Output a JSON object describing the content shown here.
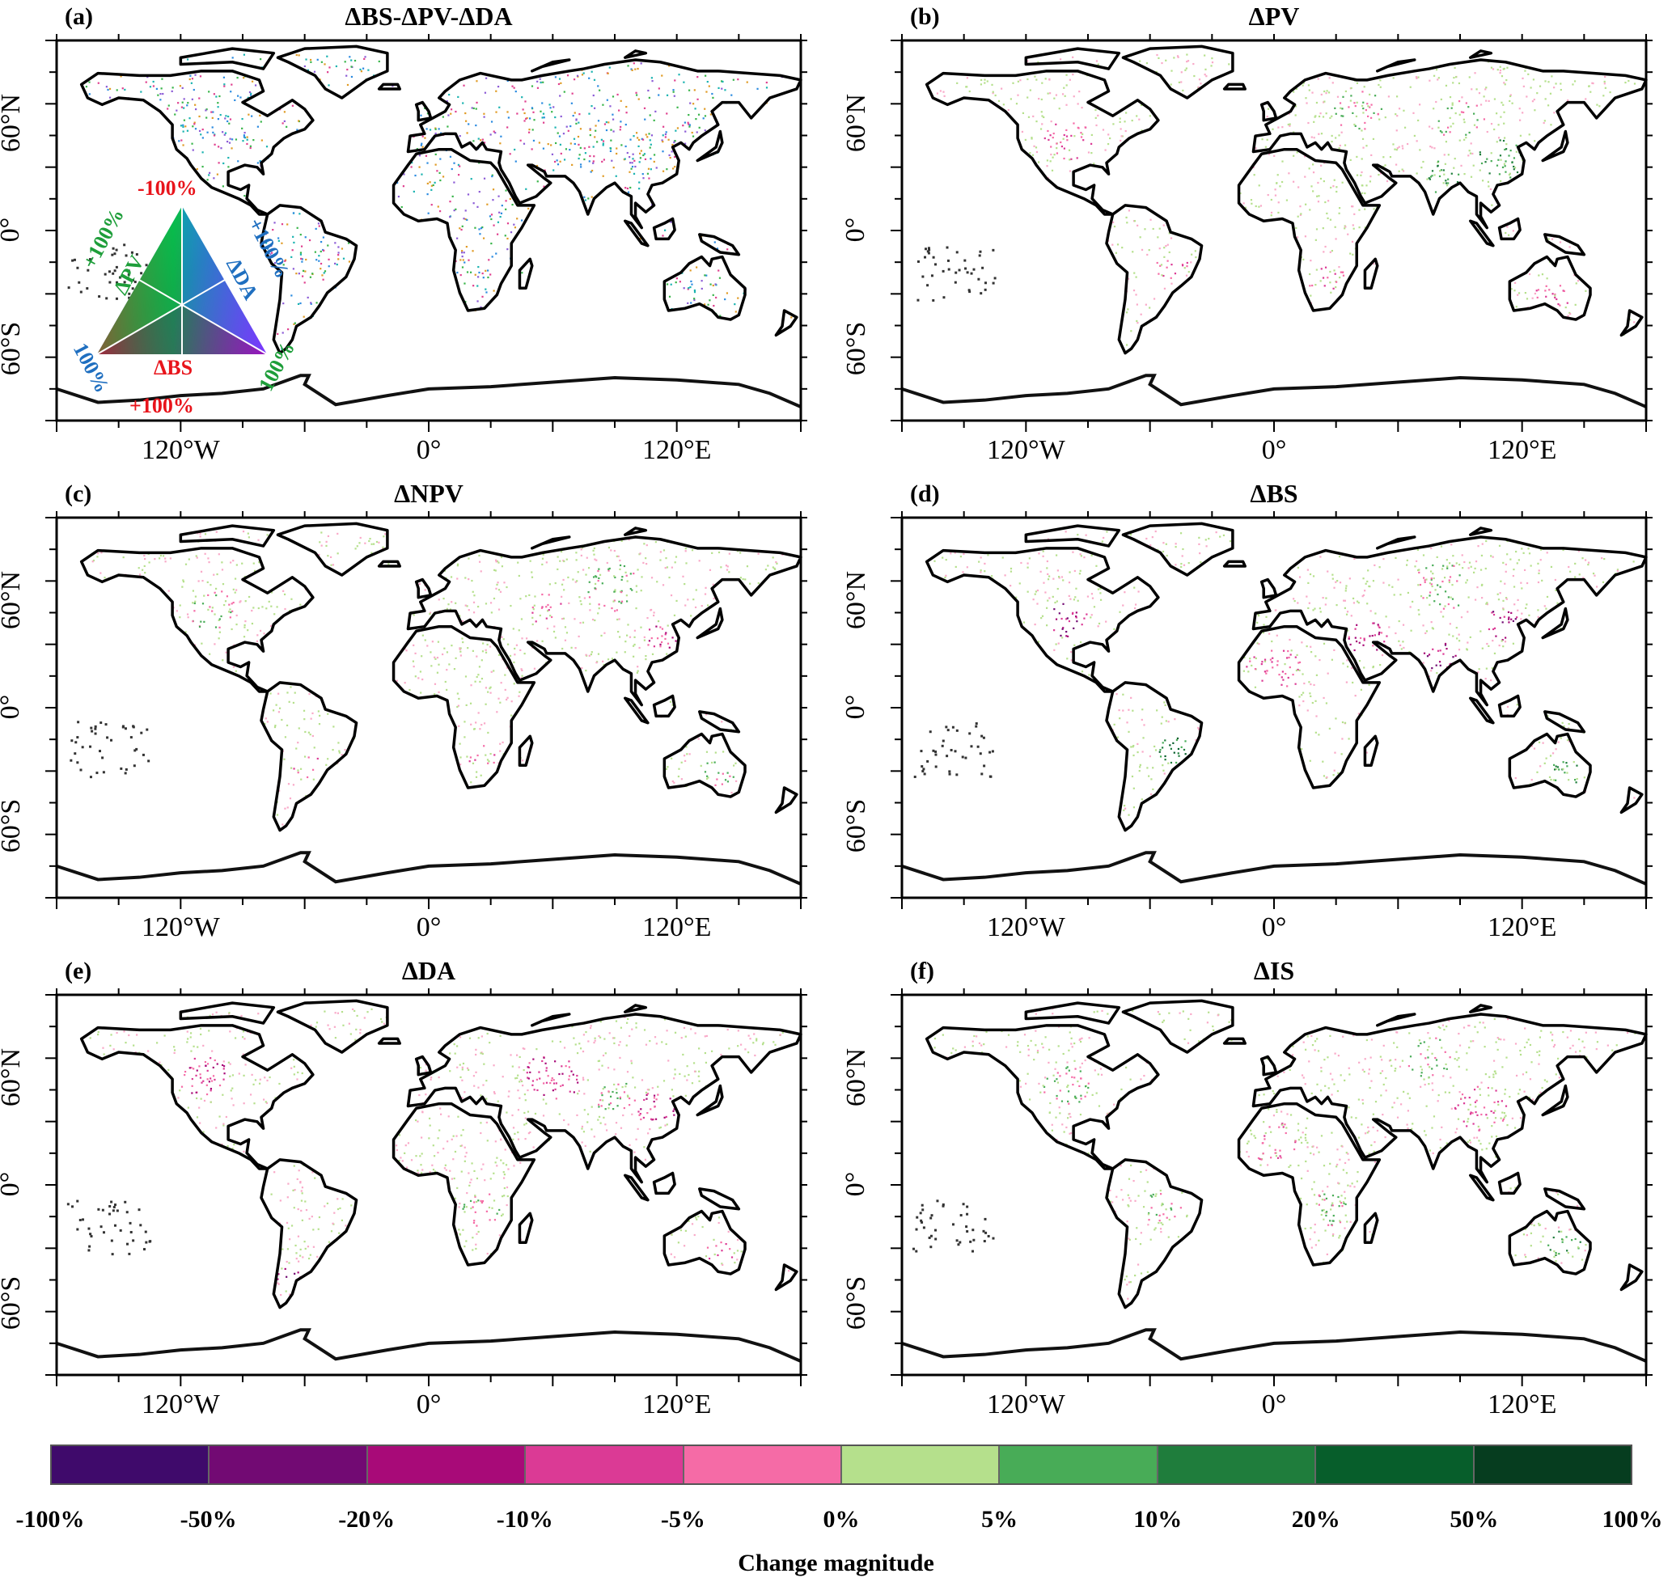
{
  "panels": [
    {
      "letter": "(a)",
      "title": "ΔBS-ΔPV-ΔDA"
    },
    {
      "letter": "(b)",
      "title": "ΔPV"
    },
    {
      "letter": "(c)",
      "title": "ΔNPV"
    },
    {
      "letter": "(d)",
      "title": "ΔBS"
    },
    {
      "letter": "(e)",
      "title": "ΔDA"
    },
    {
      "letter": "(f)",
      "title": "ΔIS"
    }
  ],
  "axes": {
    "lat_ticks": [
      "60°N",
      "0°",
      "60°S"
    ],
    "lon_ticks": [
      "120°W",
      "0°",
      "120°E"
    ]
  },
  "ternary_legend": {
    "top": "-100%",
    "bottom": "+100%",
    "pv_label": "ΔPV",
    "pv_value": "+100%",
    "da_label": "ΔDA",
    "da_value": "+100%",
    "bs_label": "ΔBS",
    "left_corner": "100%",
    "right_corner": "100%"
  },
  "colorbar": {
    "title": "Change magnitude",
    "labels": [
      "-100%",
      "-50%",
      "-20%",
      "-10%",
      "-5%",
      "0%",
      "5%",
      "10%",
      "20%",
      "50%",
      "100%"
    ],
    "colors": [
      "#3f0a6b",
      "#720a73",
      "#a80a78",
      "#db3a95",
      "#f56ba6",
      "#b5e08c",
      "#48ac57",
      "#1f7d3c",
      "#075e2b",
      "#063d1f"
    ]
  },
  "colors": {
    "land_outline": "#000000",
    "increase": "#4caf50",
    "decrease": "#e0468f"
  }
}
